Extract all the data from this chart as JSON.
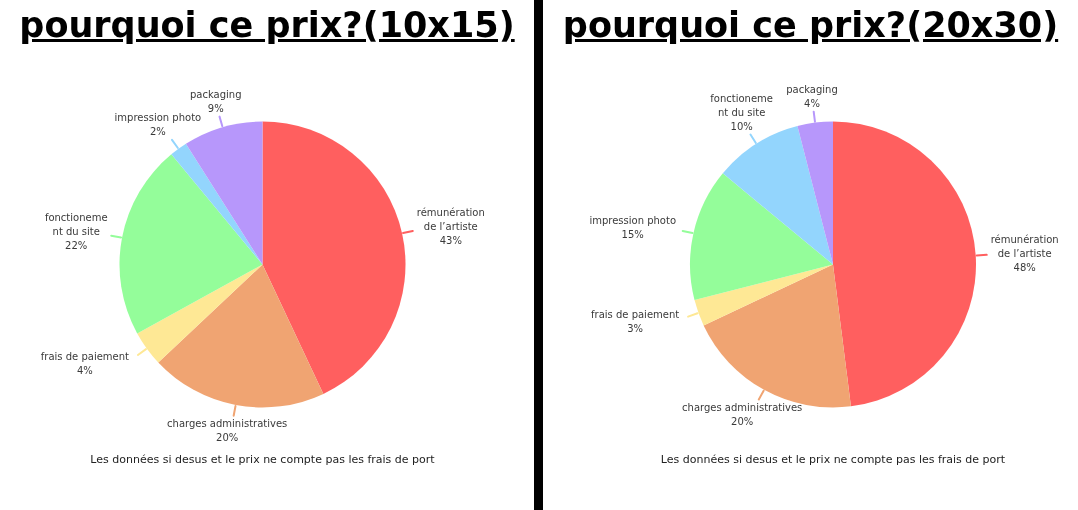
{
  "chart_data": [
    {
      "type": "pie",
      "title": "pourquoi ce prix?(10x15)",
      "categories": [
        "rémunération\nde l’artiste",
        "charges administratives",
        "frais de paiement",
        "fonctioneme\nnt du site",
        "impression photo",
        "packaging"
      ],
      "values": [
        43,
        20,
        4,
        22,
        2,
        9
      ],
      "colors": [
        "#ff5f5f",
        "#f0a472",
        "#fee895",
        "#94fd9a",
        "#93d5fd",
        "#b797fb"
      ],
      "value_labels": [
        "43%",
        "20%",
        "4%",
        "22%",
        "2%",
        "9%"
      ],
      "annotations": [
        "Les données si desus et le prix ne compte pas les frais de port"
      ]
    },
    {
      "type": "pie",
      "title": "pourquoi ce prix?(20x30)",
      "categories": [
        "rémunération\nde l’artiste",
        "charges administratives",
        "frais de paiement",
        "impression photo",
        "fonctioneme\nnt du site",
        "packaging"
      ],
      "values": [
        48,
        20,
        3,
        15,
        10,
        4
      ],
      "colors": [
        "#ff5f5f",
        "#f0a472",
        "#fee895",
        "#94fd9a",
        "#93d5fd",
        "#b797fb"
      ],
      "value_labels": [
        "48%",
        "20%",
        "3%",
        "15%",
        "10%",
        "4%"
      ],
      "annotations": [
        "Les données si desus et le prix ne compte pas les frais de port"
      ]
    }
  ]
}
